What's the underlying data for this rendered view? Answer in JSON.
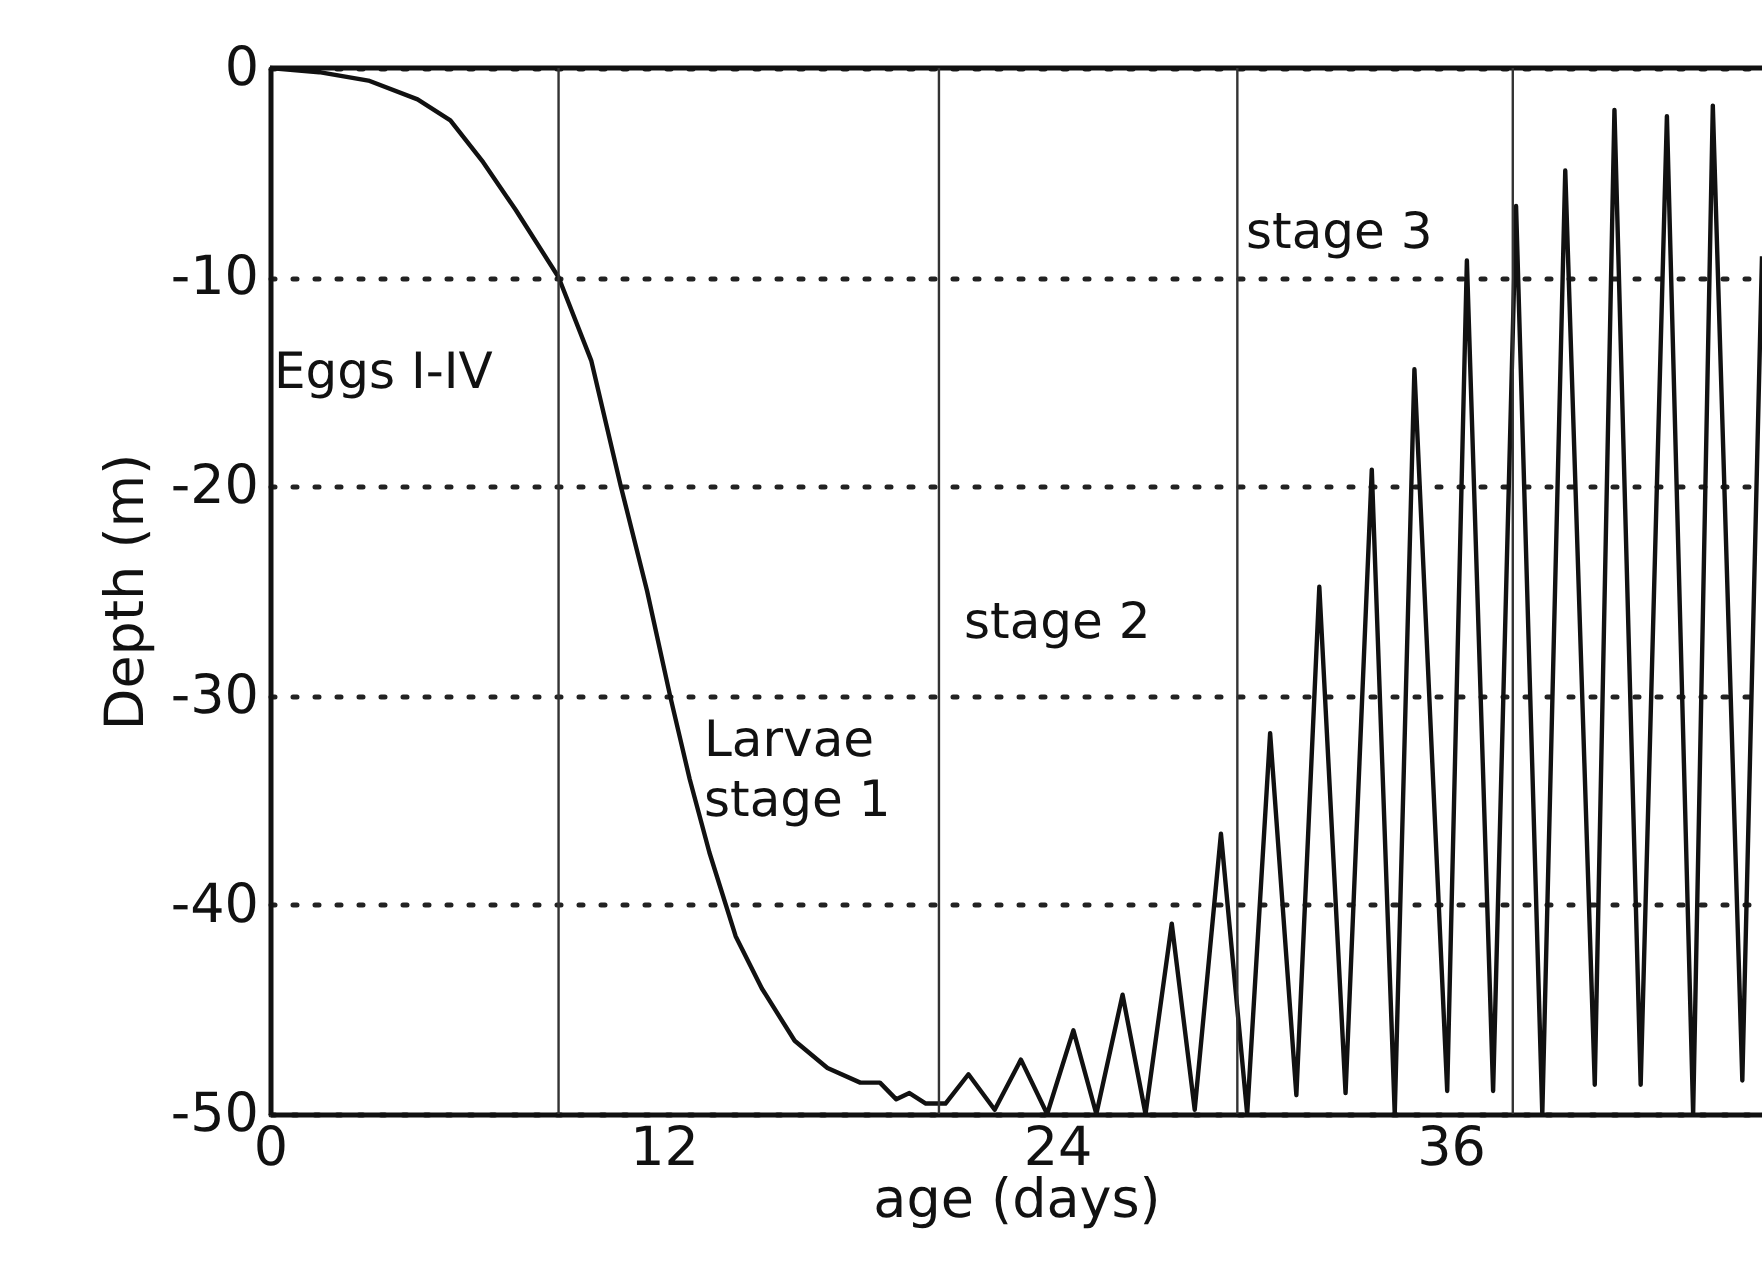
{
  "chart_data": {
    "type": "line",
    "xlabel": "age (days)",
    "ylabel": "Depth (m)",
    "x": [
      0,
      1.5,
      3,
      4.5,
      5.5,
      6.5,
      7.5,
      8.8,
      9.8,
      10.7,
      11.5,
      12.2,
      12.8,
      13.4,
      14.2,
      15,
      16,
      17,
      18,
      18.6,
      19.1,
      19.5,
      20,
      20.6,
      21.3,
      22.1,
      22.9,
      23.7,
      24.5,
      25.2,
      26,
      26.7,
      27.5,
      28.2,
      29,
      29.8,
      30.5,
      31.3,
      32,
      32.8,
      33.6,
      34.3,
      34.9,
      35.9,
      36.5,
      37.3,
      38,
      38.8,
      39.5,
      40.4,
      41,
      41.8,
      42.6,
      43.4,
      44,
      44.9,
      45.5
    ],
    "series": [
      {
        "color": "#111111",
        "values": [
          0,
          -0.2,
          -0.6,
          -1.5,
          -2.5,
          -4.5,
          -6.8,
          -10,
          -14,
          -20,
          -25,
          -30,
          -34,
          -37.5,
          -41.5,
          -44,
          -46.5,
          -47.8,
          -48.5,
          -48.5,
          -49.3,
          -49,
          -49.5,
          -49.5,
          -48.1,
          -49.8,
          -47.4,
          -50,
          -46,
          -50,
          -44.3,
          -50,
          -40.9,
          -49.8,
          -36.6,
          -50,
          -31.8,
          -49.1,
          -24.8,
          -49,
          -19.2,
          -50,
          -14.4,
          -48.9,
          -9.2,
          -48.9,
          -6.6,
          -50,
          -4.9,
          -48.6,
          -2,
          -48.6,
          -2.3,
          -50,
          -1.8,
          -48.4,
          -9
        ]
      }
    ],
    "xlim": [
      0,
      45.5
    ],
    "ylim": [
      -50,
      0
    ],
    "xticks": [
      0,
      12,
      24,
      36
    ],
    "yticks": [
      -50,
      -40,
      -30,
      -20,
      -10,
      0
    ],
    "grid": "y",
    "marker": "none",
    "line_style": "solid",
    "ref_lines": [
      {
        "axis": "x",
        "value": 8.8,
        "label": null
      },
      {
        "axis": "x",
        "value": 20.4,
        "label": null
      },
      {
        "axis": "x",
        "value": 29.5,
        "label": null
      },
      {
        "axis": "x",
        "value": 37.9,
        "label": null
      }
    ],
    "annotations": [
      "Eggs I-IV",
      "Larvae\nstage 1",
      "stage 2",
      "stage 3"
    ]
  }
}
